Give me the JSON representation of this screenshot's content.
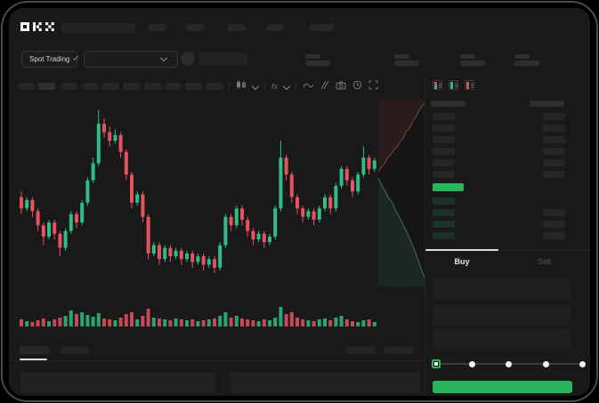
{
  "window": {
    "brand": "OKX"
  },
  "header": {
    "mode_button": {
      "label": "Spot Trading"
    },
    "nav_placeholder_count": 5,
    "ticker_stat_count": 4
  },
  "chart_toolbar": {
    "icons": [
      "candle-type-icon",
      "chevron-down-icon",
      "indicator-fx-icon",
      "chevron-down-icon",
      "line-chart-icon",
      "compare-icon",
      "camera-icon",
      "clock-icon",
      "fullscreen-icon"
    ]
  },
  "orderbook": {
    "view_icons": [
      "book-both-icon",
      "book-bids-icon",
      "book-asks-icon"
    ],
    "ask_row_count": 6,
    "bid_row_count": 4
  },
  "trade_panel": {
    "tabs": {
      "buy": "Buy",
      "sell": "Sell"
    },
    "slider_steps": 5
  },
  "colors": {
    "up": "#2ebd85",
    "down": "#e8515f",
    "accent_green": "#2ab55e",
    "grid": "#222222",
    "depth_ask_line": "#7a4548",
    "depth_ask_fill": "rgba(96,46,50,0.28)",
    "depth_bid_line": "#3f6f5c",
    "depth_bid_fill": "rgba(42,92,70,0.26)"
  },
  "chart_data": {
    "type": "candlestick",
    "note": "no axis labels visible; values on relative 0-100 scale read from candle geometry",
    "candles": [
      [
        62,
        58,
        56,
        64
      ],
      [
        58,
        61,
        57,
        62
      ],
      [
        61,
        57,
        55,
        62
      ],
      [
        57,
        52,
        50,
        58
      ],
      [
        52,
        48,
        45,
        53
      ],
      [
        48,
        53,
        47,
        54
      ],
      [
        53,
        49,
        47,
        54
      ],
      [
        49,
        44,
        41,
        50
      ],
      [
        44,
        50,
        43,
        51
      ],
      [
        50,
        56,
        49,
        57
      ],
      [
        56,
        53,
        51,
        57
      ],
      [
        53,
        60,
        52,
        61
      ],
      [
        60,
        68,
        59,
        69
      ],
      [
        68,
        74,
        67,
        76
      ],
      [
        74,
        88,
        73,
        93
      ],
      [
        88,
        85,
        83,
        90
      ],
      [
        85,
        82,
        80,
        87
      ],
      [
        82,
        84,
        81,
        86
      ],
      [
        84,
        78,
        76,
        85
      ],
      [
        78,
        70,
        68,
        79
      ],
      [
        70,
        60,
        58,
        71
      ],
      [
        60,
        63,
        59,
        64
      ],
      [
        63,
        55,
        53,
        64
      ],
      [
        55,
        42,
        40,
        56
      ],
      [
        42,
        45,
        41,
        46
      ],
      [
        45,
        40,
        38,
        46
      ],
      [
        40,
        44,
        39,
        45
      ],
      [
        44,
        41,
        39,
        45
      ],
      [
        41,
        43,
        40,
        44
      ],
      [
        43,
        40,
        38,
        44
      ],
      [
        40,
        42,
        39,
        43
      ],
      [
        42,
        39,
        37,
        43
      ],
      [
        39,
        41,
        38,
        42
      ],
      [
        41,
        38,
        36,
        42
      ],
      [
        38,
        40,
        37,
        41
      ],
      [
        40,
        37,
        35,
        41
      ],
      [
        37,
        45,
        36,
        46
      ],
      [
        45,
        55,
        44,
        56
      ],
      [
        55,
        52,
        50,
        56
      ],
      [
        52,
        58,
        51,
        59
      ],
      [
        58,
        54,
        52,
        59
      ],
      [
        54,
        50,
        48,
        55
      ],
      [
        50,
        47,
        45,
        51
      ],
      [
        47,
        49,
        46,
        50
      ],
      [
        49,
        46,
        44,
        50
      ],
      [
        46,
        48,
        45,
        49
      ],
      [
        48,
        58,
        47,
        59
      ],
      [
        58,
        76,
        57,
        82
      ],
      [
        76,
        70,
        68,
        77
      ],
      [
        70,
        62,
        60,
        71
      ],
      [
        62,
        58,
        56,
        63
      ],
      [
        58,
        55,
        53,
        59
      ],
      [
        55,
        57,
        54,
        58
      ],
      [
        57,
        54,
        52,
        58
      ],
      [
        54,
        58,
        53,
        59
      ],
      [
        58,
        62,
        57,
        63
      ],
      [
        62,
        58,
        56,
        63
      ],
      [
        58,
        66,
        57,
        67
      ],
      [
        66,
        72,
        65,
        73
      ],
      [
        72,
        68,
        66,
        73
      ],
      [
        68,
        64,
        62,
        69
      ],
      [
        64,
        70,
        63,
        71
      ],
      [
        70,
        76,
        69,
        80
      ],
      [
        76,
        72,
        70,
        77
      ],
      [
        72,
        75,
        71,
        76
      ]
    ],
    "volumes": [
      8,
      6,
      5,
      7,
      9,
      6,
      8,
      10,
      12,
      18,
      14,
      16,
      13,
      11,
      15,
      9,
      8,
      7,
      10,
      14,
      16,
      8,
      12,
      20,
      10,
      9,
      8,
      7,
      9,
      8,
      7,
      8,
      6,
      7,
      8,
      9,
      12,
      16,
      10,
      12,
      9,
      8,
      7,
      6,
      8,
      7,
      10,
      22,
      14,
      16,
      10,
      8,
      7,
      6,
      8,
      9,
      7,
      10,
      12,
      8,
      6,
      5,
      7,
      8,
      5
    ],
    "depth": {
      "asks": [
        [
          0,
          0.385
        ],
        [
          0.07,
          0.36
        ],
        [
          0.13,
          0.345
        ],
        [
          0.2,
          0.31
        ],
        [
          0.27,
          0.295
        ],
        [
          0.33,
          0.27
        ],
        [
          0.4,
          0.255
        ],
        [
          0.47,
          0.225
        ],
        [
          0.53,
          0.21
        ],
        [
          0.6,
          0.17
        ],
        [
          0.67,
          0.155
        ],
        [
          0.75,
          0.115
        ],
        [
          0.82,
          0.09
        ],
        [
          0.9,
          0.05
        ],
        [
          1,
          0.02
        ]
      ],
      "bids": [
        [
          0,
          0.42
        ],
        [
          0.08,
          0.46
        ],
        [
          0.15,
          0.49
        ],
        [
          0.22,
          0.525
        ],
        [
          0.3,
          0.55
        ],
        [
          0.37,
          0.59
        ],
        [
          0.45,
          0.625
        ],
        [
          0.52,
          0.66
        ],
        [
          0.6,
          0.7
        ],
        [
          0.68,
          0.745
        ],
        [
          0.76,
          0.79
        ],
        [
          0.84,
          0.845
        ],
        [
          0.92,
          0.9
        ],
        [
          1,
          0.955
        ]
      ]
    }
  }
}
